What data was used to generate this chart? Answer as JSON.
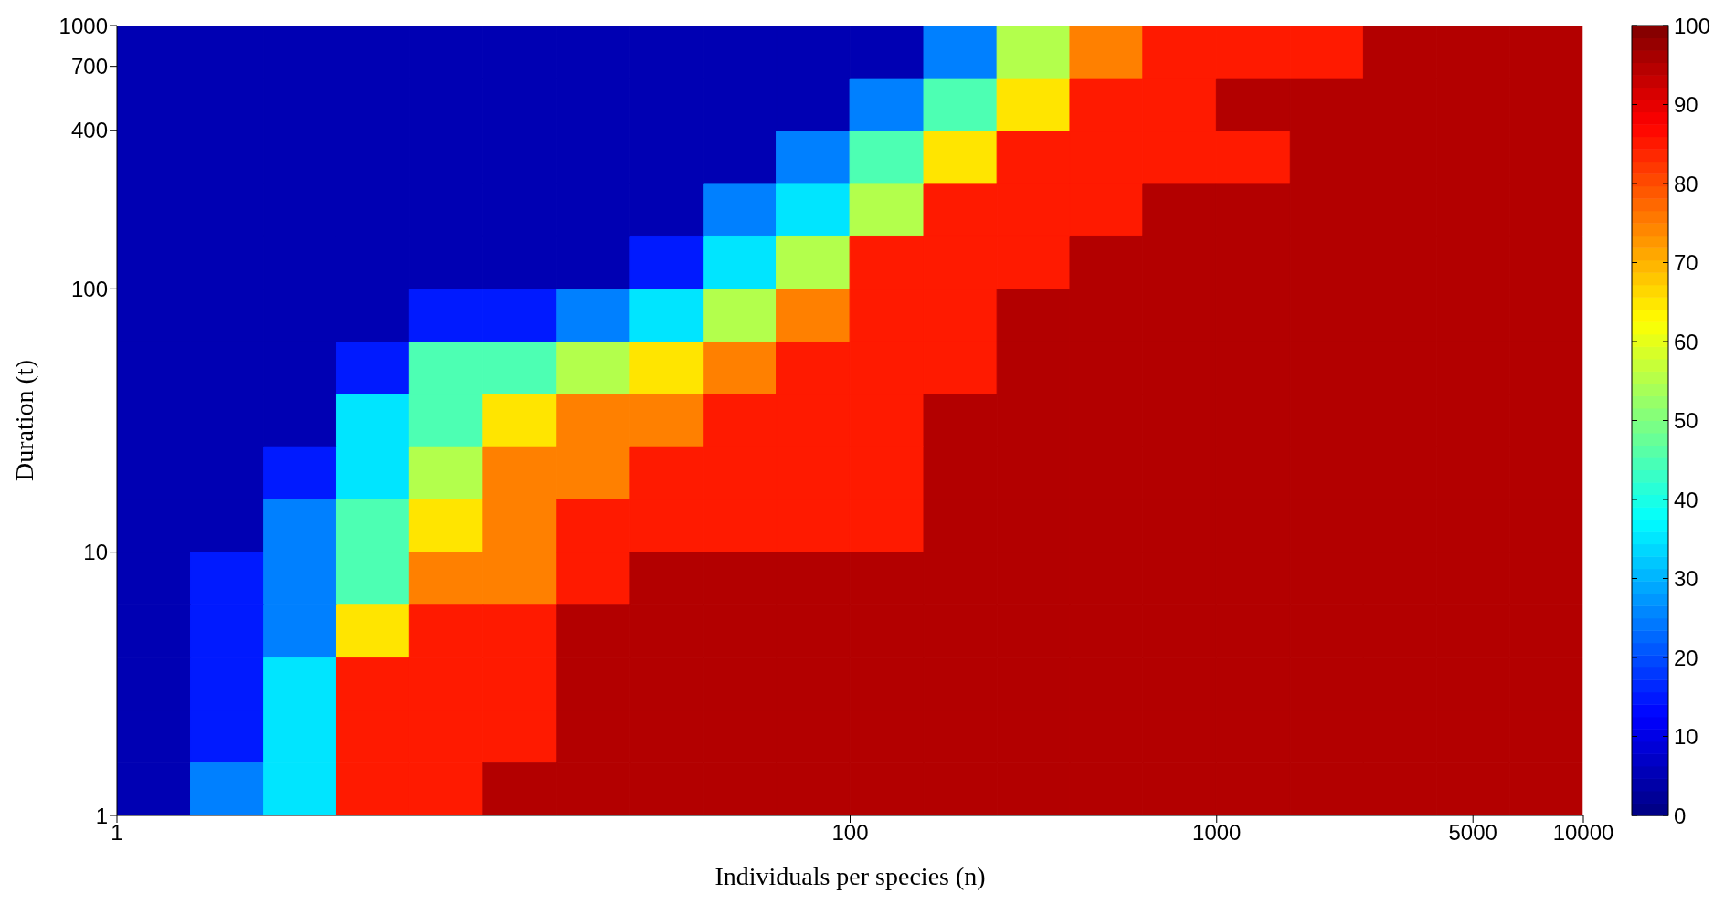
{
  "chart_data": {
    "type": "heatmap",
    "xlabel": "Individuals per species (n)",
    "ylabel": "Duration (t)",
    "log": "xy",
    "x": [
      1.26,
      2,
      3.16,
      5,
      7.9,
      12.6,
      20,
      31.6,
      50,
      79,
      126,
      200,
      316,
      500,
      790,
      1260,
      2000,
      3160,
      5000,
      7900
    ],
    "y": [
      790,
      500,
      316,
      200,
      126,
      79,
      50,
      31.6,
      20,
      12.6,
      7.9,
      5,
      3.16,
      2,
      1.26
    ],
    "xlim": [
      1,
      10000
    ],
    "xticks": [
      1,
      100,
      1000,
      5000,
      10000
    ],
    "ylim": [
      1,
      1000
    ],
    "yticks": [
      1,
      10,
      100,
      400,
      700,
      1000
    ],
    "clim": [
      0,
      100
    ],
    "cticks": [
      0,
      10,
      20,
      30,
      40,
      50,
      60,
      70,
      80,
      90,
      100
    ],
    "cells": [
      [
        5,
        5,
        5,
        5,
        5,
        5,
        5,
        5,
        5,
        5,
        5,
        25,
        55,
        75,
        85,
        85,
        85,
        95,
        95,
        95
      ],
      [
        5,
        5,
        5,
        5,
        5,
        5,
        5,
        5,
        5,
        5,
        25,
        45,
        65,
        85,
        85,
        95,
        95,
        95,
        95,
        95
      ],
      [
        5,
        5,
        5,
        5,
        5,
        5,
        5,
        5,
        5,
        25,
        45,
        65,
        85,
        85,
        85,
        85,
        95,
        95,
        95,
        95
      ],
      [
        5,
        5,
        5,
        5,
        5,
        5,
        5,
        5,
        25,
        35,
        55,
        85,
        85,
        85,
        95,
        95,
        95,
        95,
        95,
        95
      ],
      [
        5,
        5,
        5,
        5,
        5,
        5,
        5,
        15,
        35,
        55,
        85,
        85,
        85,
        95,
        95,
        95,
        95,
        95,
        95,
        95
      ],
      [
        5,
        5,
        5,
        5,
        15,
        15,
        25,
        35,
        55,
        75,
        85,
        85,
        95,
        95,
        95,
        95,
        95,
        95,
        95,
        95
      ],
      [
        5,
        5,
        5,
        15,
        45,
        45,
        55,
        65,
        75,
        85,
        85,
        85,
        95,
        95,
        95,
        95,
        95,
        95,
        95,
        95
      ],
      [
        5,
        5,
        5,
        35,
        45,
        65,
        75,
        75,
        85,
        85,
        85,
        95,
        95,
        95,
        95,
        95,
        95,
        95,
        95,
        95
      ],
      [
        5,
        5,
        15,
        35,
        55,
        75,
        75,
        85,
        85,
        85,
        85,
        95,
        95,
        95,
        95,
        95,
        95,
        95,
        95,
        95
      ],
      [
        5,
        5,
        25,
        45,
        65,
        75,
        85,
        85,
        85,
        85,
        85,
        95,
        95,
        95,
        95,
        95,
        95,
        95,
        95,
        95
      ],
      [
        5,
        15,
        25,
        45,
        75,
        75,
        85,
        95,
        95,
        95,
        95,
        95,
        95,
        95,
        95,
        95,
        95,
        95,
        95,
        95
      ],
      [
        5,
        15,
        25,
        65,
        85,
        85,
        95,
        95,
        95,
        95,
        95,
        95,
        95,
        95,
        95,
        95,
        95,
        95,
        95,
        95
      ],
      [
        5,
        15,
        35,
        85,
        85,
        85,
        95,
        95,
        95,
        95,
        95,
        95,
        95,
        95,
        95,
        95,
        95,
        95,
        95,
        95
      ],
      [
        5,
        15,
        35,
        85,
        85,
        85,
        95,
        95,
        95,
        95,
        95,
        95,
        95,
        95,
        95,
        95,
        95,
        95,
        95,
        95
      ],
      [
        5,
        25,
        35,
        85,
        85,
        95,
        95,
        95,
        95,
        95,
        95,
        95,
        95,
        95,
        95,
        95,
        95,
        95,
        95,
        95
      ]
    ]
  }
}
